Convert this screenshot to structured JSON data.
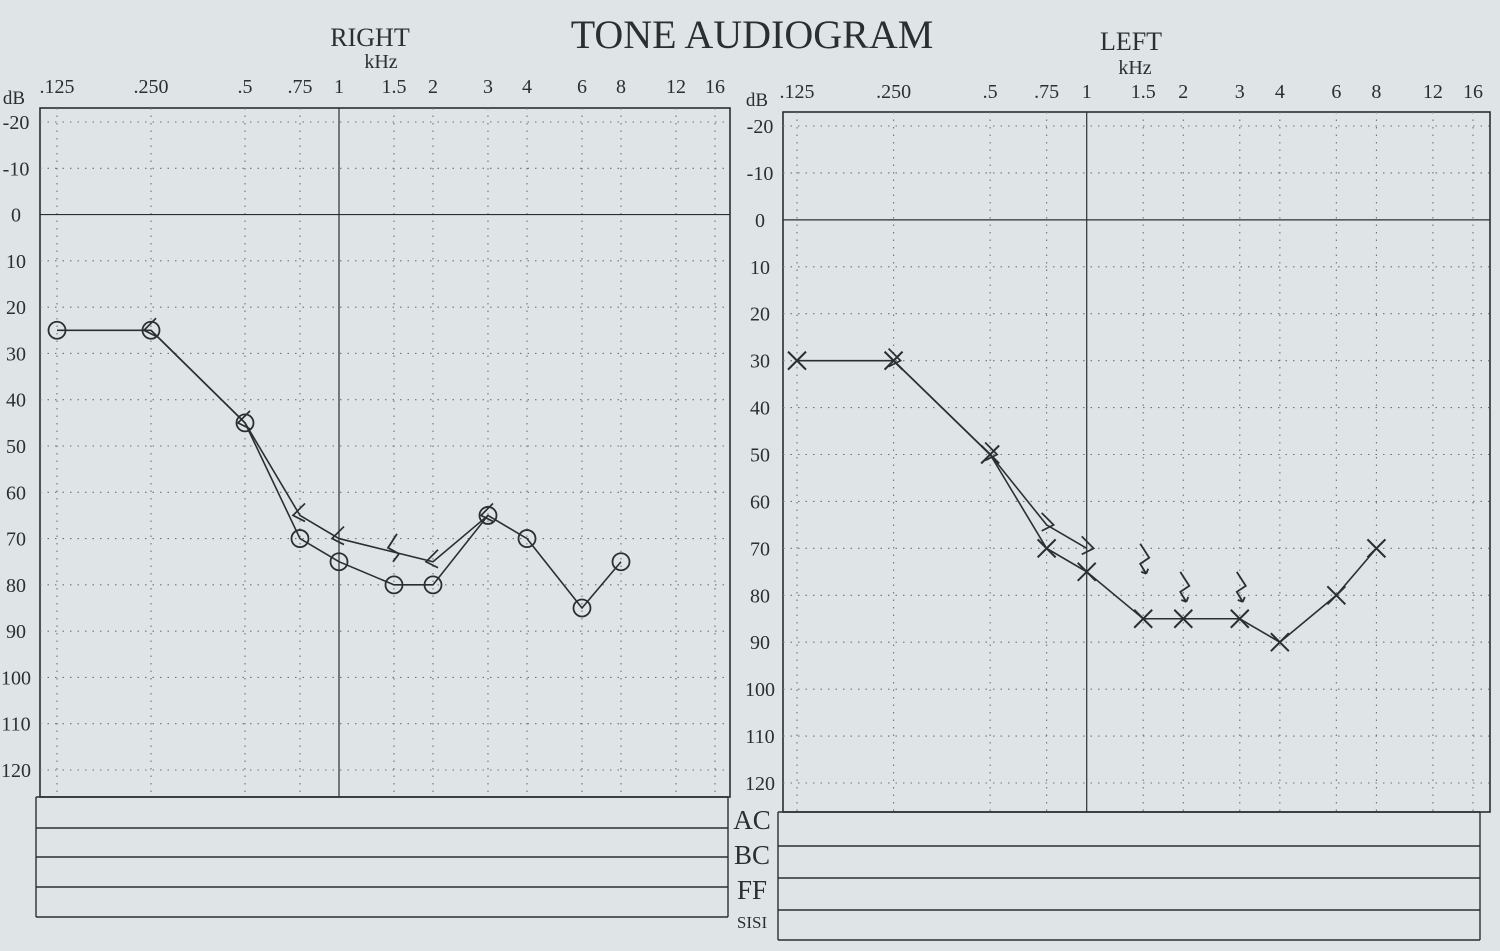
{
  "title": "TONE AUDIOGRAM",
  "freq_unit": "kHz",
  "db_unit": "dB",
  "table_rows": [
    "AC",
    "BC",
    "FF",
    "SISI"
  ],
  "colors": {
    "paper": "#dfe4e6",
    "ink": "#2b2f33",
    "grid": "#6d7479"
  },
  "chart_data": [
    {
      "type": "line",
      "ear": "RIGHT",
      "x_ticks": [
        ".125",
        ".250",
        ".5",
        ".75",
        "1",
        "1.5",
        "2",
        "3",
        "4",
        "6",
        "8",
        "12",
        "16"
      ],
      "y_ticks": [
        "-20",
        "-10",
        "0",
        "10",
        "20",
        "30",
        "40",
        "50",
        "60",
        "70",
        "80",
        "90",
        "100",
        "110",
        "120"
      ],
      "x_scale": "log",
      "ylim": [
        -20,
        120
      ],
      "y_inverted": true,
      "grid": true,
      "series": [
        {
          "symbol": "circle",
          "x": [
            0.125,
            0.25,
            0.5,
            0.75,
            1,
            1.5,
            2,
            3,
            4,
            6,
            8
          ],
          "y": [
            25,
            25,
            45,
            70,
            75,
            80,
            80,
            65,
            70,
            85,
            75
          ]
        },
        {
          "symbol": "bracket",
          "x": [
            0.25,
            0.5,
            0.75,
            1,
            2,
            3
          ],
          "y": [
            25,
            45,
            65,
            70,
            75,
            65
          ]
        }
      ],
      "isolated_marks": [
        {
          "symbol": "arrow",
          "x": 1.5,
          "y": 72
        }
      ]
    },
    {
      "type": "line",
      "ear": "LEFT",
      "x_ticks": [
        ".125",
        ".250",
        ".5",
        ".75",
        "1",
        "1.5",
        "2",
        "3",
        "4",
        "6",
        "8",
        "12",
        "16"
      ],
      "y_ticks": [
        "-20",
        "-10",
        "0",
        "10",
        "20",
        "30",
        "40",
        "50",
        "60",
        "70",
        "80",
        "90",
        "100",
        "110",
        "120"
      ],
      "x_scale": "log",
      "ylim": [
        -20,
        120
      ],
      "y_inverted": true,
      "grid": true,
      "series": [
        {
          "symbol": "cross",
          "x": [
            0.125,
            0.25,
            0.5,
            0.75,
            1,
            1.5,
            2,
            3,
            4,
            6,
            8
          ],
          "y": [
            30,
            30,
            50,
            70,
            75,
            85,
            85,
            85,
            90,
            80,
            70
          ]
        },
        {
          "symbol": "bracket",
          "x": [
            0.25,
            0.5,
            0.75,
            1
          ],
          "y": [
            30,
            50,
            65,
            70
          ]
        }
      ],
      "isolated_marks": [
        {
          "symbol": "arrow",
          "x": 1.5,
          "y": 72
        },
        {
          "symbol": "arrow",
          "x": 2,
          "y": 78
        },
        {
          "symbol": "arrow",
          "x": 3,
          "y": 78
        }
      ]
    }
  ]
}
